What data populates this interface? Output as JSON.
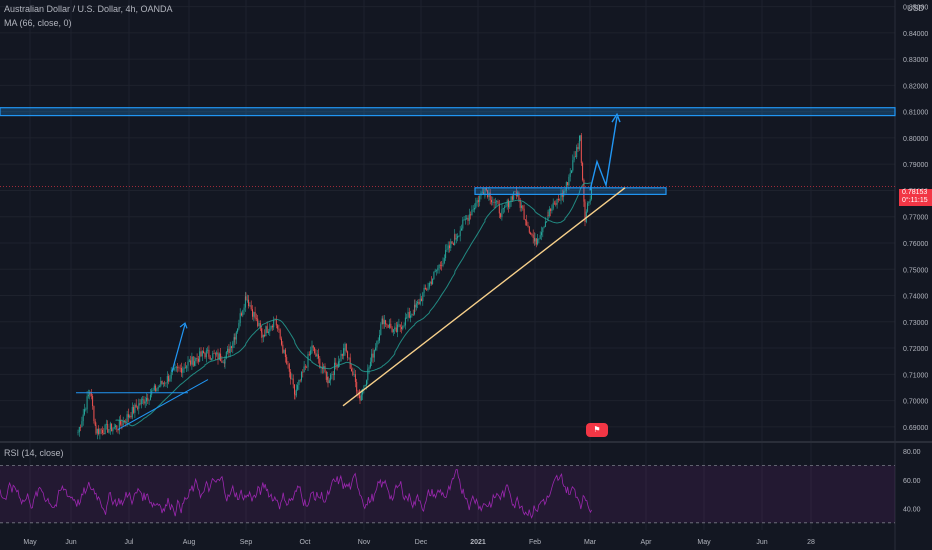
{
  "header": {
    "symbol_line": "Australian Dollar / U.S. Dollar, 4h, OANDA",
    "ma_line": "MA (66, close, 0)",
    "rsi_line": "RSI (14, close)",
    "currency": "USD"
  },
  "price_label": {
    "value": "0.78153",
    "countdown": "0°:11:15"
  },
  "news_badge_icon": "news-flag-icon",
  "colors": {
    "background": "#131722",
    "grid": "#1e222d",
    "up": "#26a69a",
    "down": "#ef5350",
    "ma": "#26a69a",
    "trendline": "#f7d08a",
    "zone": "#2196f3",
    "arrow": "#2196f3",
    "rsi": "#9c27b0",
    "price_line": "#f23645"
  },
  "chart_data": [
    {
      "type": "candlestick",
      "title": "Australian Dollar / U.S. Dollar, 4h, OANDA",
      "y_axis_ticks": [
        "0.85000",
        "0.84000",
        "0.83000",
        "0.82000",
        "0.81000",
        "0.80000",
        "0.79000",
        "0.78000",
        "0.77000",
        "0.76000",
        "0.75000",
        "0.74000",
        "0.73000",
        "0.72000",
        "0.71000",
        "0.70000",
        "0.69000"
      ],
      "ylim": [
        0.685,
        0.8525
      ],
      "x_axis_ticks": [
        "May",
        "Jun",
        "Jul",
        "Aug",
        "Sep",
        "Oct",
        "Nov",
        "Dec",
        "2021",
        "Feb",
        "Mar",
        "Apr",
        "May",
        "Jun",
        "28"
      ],
      "price_path": [
        {
          "x": "Jun",
          "y": 0.688
        },
        {
          "x": "Jun",
          "y": 0.704
        },
        {
          "x": "Jun",
          "y": 0.6885
        },
        {
          "x": "Jul",
          "y": 0.69
        },
        {
          "x": "Jul",
          "y": 0.699
        },
        {
          "x": "Jul",
          "y": 0.711
        },
        {
          "x": "Aug",
          "y": 0.718
        },
        {
          "x": "Aug",
          "y": 0.716
        },
        {
          "x": "Aug",
          "y": 0.725
        },
        {
          "x": "Sep",
          "y": 0.74
        },
        {
          "x": "Sep",
          "y": 0.725
        },
        {
          "x": "Sep",
          "y": 0.731
        },
        {
          "x": "Oct",
          "y": 0.702
        },
        {
          "x": "Oct",
          "y": 0.72
        },
        {
          "x": "Oct",
          "y": 0.708
        },
        {
          "x": "Oct",
          "y": 0.72
        },
        {
          "x": "Nov",
          "y": 0.701
        },
        {
          "x": "Nov",
          "y": 0.731
        },
        {
          "x": "Nov",
          "y": 0.726
        },
        {
          "x": "Dec",
          "y": 0.735
        },
        {
          "x": "Dec",
          "y": 0.745
        },
        {
          "x": "Dec",
          "y": 0.762
        },
        {
          "x": "2021",
          "y": 0.781
        },
        {
          "x": "2021",
          "y": 0.771
        },
        {
          "x": "2021",
          "y": 0.78
        },
        {
          "x": "Feb",
          "y": 0.76
        },
        {
          "x": "Feb",
          "y": 0.771
        },
        {
          "x": "Feb",
          "y": 0.78
        },
        {
          "x": "Mar",
          "y": 0.8
        },
        {
          "x": "Mar",
          "y": 0.77
        },
        {
          "x": "Mar",
          "y": 0.7815
        }
      ],
      "resistance_zone": [
        0.8085,
        0.8115
      ],
      "support_zone": [
        0.7785,
        0.781
      ],
      "current_price": 0.78153
    },
    {
      "type": "line",
      "title": "RSI (14, close)",
      "y_axis_ticks": [
        "80.00",
        "60.00",
        "40.00"
      ],
      "levels": [
        70,
        30
      ]
    }
  ]
}
